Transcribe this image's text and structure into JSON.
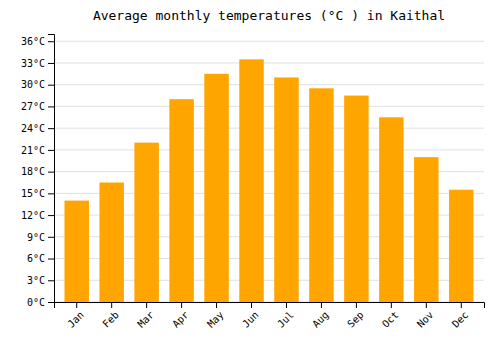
{
  "chart_data": {
    "type": "bar",
    "title": "Average monthly temperatures (°C ) in Kaithal",
    "categories": [
      "Jan",
      "Feb",
      "Mar",
      "Apr",
      "May",
      "Jun",
      "Jul",
      "Aug",
      "Sep",
      "Oct",
      "Nov",
      "Dec"
    ],
    "values": [
      14,
      16.5,
      22,
      28,
      31.5,
      33.5,
      31,
      29.5,
      28.5,
      25.5,
      20,
      15.5
    ],
    "color": "#FFA500",
    "ylim": [
      0,
      37
    ],
    "yticks": [
      {
        "value": 0,
        "label": "0°C"
      },
      {
        "value": 3,
        "label": "3°C"
      },
      {
        "value": 6,
        "label": "6°C"
      },
      {
        "value": 9,
        "label": "9°C"
      },
      {
        "value": 12,
        "label": "12°C"
      },
      {
        "value": 15,
        "label": "15°C"
      },
      {
        "value": 18,
        "label": "18°C"
      },
      {
        "value": 21,
        "label": "21°C"
      },
      {
        "value": 24,
        "label": "24°C"
      },
      {
        "value": 27,
        "label": "27°C"
      },
      {
        "value": 30,
        "label": "30°C"
      },
      {
        "value": 33,
        "label": "33°C"
      },
      {
        "value": 36,
        "label": "36°C"
      }
    ],
    "grid": true
  }
}
